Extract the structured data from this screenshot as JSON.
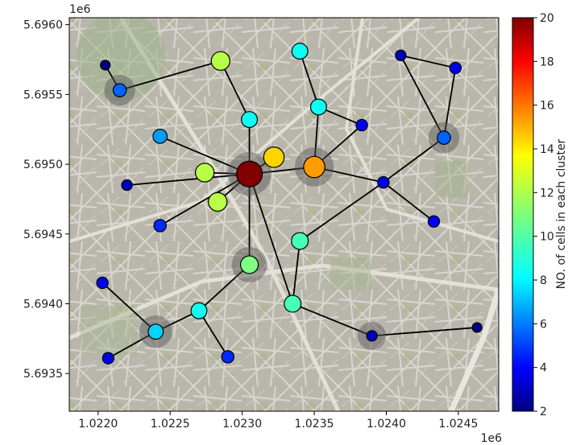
{
  "chart_data": {
    "type": "scatter",
    "subtype": "network-graph-on-map",
    "xlim": [
      1.0218,
      1.02478
    ],
    "ylim": [
      5.69323,
      5.69605
    ],
    "x_offset_label": "1e6",
    "y_offset_label": "1e6",
    "x_ticks": [
      {
        "value": 1.022,
        "label": "1.0220"
      },
      {
        "value": 1.0225,
        "label": "1.0225"
      },
      {
        "value": 1.023,
        "label": "1.0230"
      },
      {
        "value": 1.0235,
        "label": "1.0235"
      },
      {
        "value": 1.024,
        "label": "1.0240"
      },
      {
        "value": 1.0245,
        "label": "1.0245"
      }
    ],
    "y_ticks": [
      {
        "value": 5.6935,
        "label": "5.6935"
      },
      {
        "value": 5.694,
        "label": "5.6940"
      },
      {
        "value": 5.6945,
        "label": "5.6945"
      },
      {
        "value": 5.695,
        "label": "5.6950"
      },
      {
        "value": 5.6955,
        "label": "5.6955"
      },
      {
        "value": 5.696,
        "label": "5.6960"
      }
    ],
    "colorbar": {
      "label": "NO. of cells in each cluster",
      "colormap": "jet",
      "range": [
        2,
        20
      ],
      "ticks": [
        2,
        4,
        6,
        8,
        10,
        12,
        14,
        16,
        18,
        20
      ]
    },
    "nodes": [
      {
        "id": 0,
        "x": 1.02205,
        "y": 5.69571,
        "value": 2,
        "highlight": false
      },
      {
        "id": 1,
        "x": 1.02215,
        "y": 5.69553,
        "value": 6,
        "highlight": true
      },
      {
        "id": 2,
        "x": 1.02285,
        "y": 5.69574,
        "value": 12,
        "highlight": false
      },
      {
        "id": 3,
        "x": 1.0234,
        "y": 5.69581,
        "value": 9,
        "highlight": false
      },
      {
        "id": 4,
        "x": 1.0241,
        "y": 5.69578,
        "value": 3,
        "highlight": false
      },
      {
        "id": 5,
        "x": 1.02448,
        "y": 5.69569,
        "value": 4,
        "highlight": false
      },
      {
        "id": 6,
        "x": 1.02305,
        "y": 5.69532,
        "value": 9,
        "highlight": false
      },
      {
        "id": 7,
        "x": 1.02353,
        "y": 5.69541,
        "value": 9,
        "highlight": false
      },
      {
        "id": 8,
        "x": 1.02383,
        "y": 5.69528,
        "value": 4,
        "highlight": false
      },
      {
        "id": 9,
        "x": 1.02243,
        "y": 5.6952,
        "value": 7,
        "highlight": false
      },
      {
        "id": 10,
        "x": 1.0244,
        "y": 5.69519,
        "value": 6,
        "highlight": true
      },
      {
        "id": 11,
        "x": 1.02322,
        "y": 5.69505,
        "value": 14,
        "highlight": false
      },
      {
        "id": 12,
        "x": 1.0235,
        "y": 5.69498,
        "value": 15,
        "highlight": true
      },
      {
        "id": 13,
        "x": 1.02305,
        "y": 5.69493,
        "value": 20,
        "highlight": true
      },
      {
        "id": 14,
        "x": 1.02274,
        "y": 5.69494,
        "value": 12,
        "highlight": false
      },
      {
        "id": 15,
        "x": 1.0222,
        "y": 5.69485,
        "value": 3,
        "highlight": false
      },
      {
        "id": 16,
        "x": 1.02398,
        "y": 5.69487,
        "value": 4,
        "highlight": false
      },
      {
        "id": 17,
        "x": 1.02283,
        "y": 5.69473,
        "value": 12,
        "highlight": false
      },
      {
        "id": 18,
        "x": 1.02433,
        "y": 5.69459,
        "value": 4,
        "highlight": false
      },
      {
        "id": 19,
        "x": 1.02243,
        "y": 5.69456,
        "value": 5,
        "highlight": false
      },
      {
        "id": 20,
        "x": 1.0234,
        "y": 5.69445,
        "value": 10,
        "highlight": false
      },
      {
        "id": 21,
        "x": 1.02305,
        "y": 5.69428,
        "value": 11,
        "highlight": true
      },
      {
        "id": 22,
        "x": 1.02203,
        "y": 5.69415,
        "value": 4,
        "highlight": false
      },
      {
        "id": 23,
        "x": 1.02335,
        "y": 5.694,
        "value": 10,
        "highlight": false
      },
      {
        "id": 24,
        "x": 1.0227,
        "y": 5.69395,
        "value": 9,
        "highlight": false
      },
      {
        "id": 25,
        "x": 1.0224,
        "y": 5.6938,
        "value": 8,
        "highlight": true
      },
      {
        "id": 26,
        "x": 1.0239,
        "y": 5.69377,
        "value": 3,
        "highlight": true
      },
      {
        "id": 27,
        "x": 1.02463,
        "y": 5.69383,
        "value": 2,
        "highlight": false
      },
      {
        "id": 28,
        "x": 1.0229,
        "y": 5.69362,
        "value": 5,
        "highlight": false
      },
      {
        "id": 29,
        "x": 1.02207,
        "y": 5.69361,
        "value": 4,
        "highlight": false
      }
    ],
    "edges": [
      [
        0,
        1
      ],
      [
        1,
        2
      ],
      [
        2,
        6
      ],
      [
        6,
        13
      ],
      [
        3,
        7
      ],
      [
        7,
        8
      ],
      [
        7,
        12
      ],
      [
        8,
        12
      ],
      [
        4,
        5
      ],
      [
        4,
        10
      ],
      [
        5,
        10
      ],
      [
        9,
        13
      ],
      [
        11,
        13
      ],
      [
        12,
        13
      ],
      [
        14,
        13
      ],
      [
        15,
        13
      ],
      [
        17,
        13
      ],
      [
        19,
        13
      ],
      [
        12,
        16
      ],
      [
        16,
        10
      ],
      [
        16,
        18
      ],
      [
        16,
        20
      ],
      [
        20,
        23
      ],
      [
        13,
        21
      ],
      [
        13,
        23
      ],
      [
        21,
        24
      ],
      [
        24,
        25
      ],
      [
        24,
        28
      ],
      [
        22,
        25
      ],
      [
        25,
        29
      ],
      [
        23,
        26
      ],
      [
        26,
        27
      ]
    ]
  }
}
